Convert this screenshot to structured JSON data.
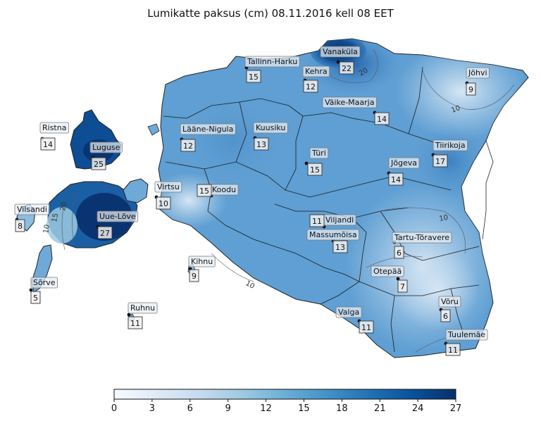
{
  "title": "Lumikatte paksus (cm) 08.11.2016 kell 08 EET",
  "colorbar": {
    "ticks": [
      "0",
      "3",
      "6",
      "9",
      "12",
      "15",
      "18",
      "21",
      "24",
      "27"
    ],
    "range": [
      0,
      27
    ],
    "colors": [
      "#f7fbff",
      "#deebf7",
      "#c6dbef",
      "#9ecae1",
      "#6baed6",
      "#4292c6",
      "#2171b5",
      "#08519c",
      "#08306b"
    ]
  },
  "contour_labels": [
    "20",
    "10",
    "10",
    "20",
    "15",
    "10",
    "10"
  ],
  "stations": [
    {
      "name": "Tallinn-Harku",
      "value": "15"
    },
    {
      "name": "Vanaküla",
      "value": "22"
    },
    {
      "name": "Kehra",
      "value": "12"
    },
    {
      "name": "Jõhvi",
      "value": "9"
    },
    {
      "name": "Väike-Maarja",
      "value": "14"
    },
    {
      "name": "Ristna",
      "value": "14"
    },
    {
      "name": "Luguse",
      "value": "25"
    },
    {
      "name": "Lääne-Nigula",
      "value": "12"
    },
    {
      "name": "Kuusiku",
      "value": "13"
    },
    {
      "name": "Türi",
      "value": "15"
    },
    {
      "name": "Jõgeva",
      "value": "14"
    },
    {
      "name": "Tiirikoja",
      "value": "17"
    },
    {
      "name": "Virtsu",
      "value": "10"
    },
    {
      "name": "Koodu",
      "value": "15"
    },
    {
      "name": "Vilsandi",
      "value": "8"
    },
    {
      "name": "Uue-Lõve",
      "value": "27"
    },
    {
      "name": "Viljandi",
      "value": "11"
    },
    {
      "name": "Massumõisa",
      "value": "13"
    },
    {
      "name": "Tartu-Tõravere",
      "value": "6"
    },
    {
      "name": "Kihnu",
      "value": "9"
    },
    {
      "name": "Otepää",
      "value": "7"
    },
    {
      "name": "Sõrve",
      "value": "5"
    },
    {
      "name": "Ruhnu",
      "value": "11"
    },
    {
      "name": "Valga",
      "value": "11"
    },
    {
      "name": "Võru",
      "value": "6"
    },
    {
      "name": "Tuulemäe",
      "value": "11"
    }
  ]
}
